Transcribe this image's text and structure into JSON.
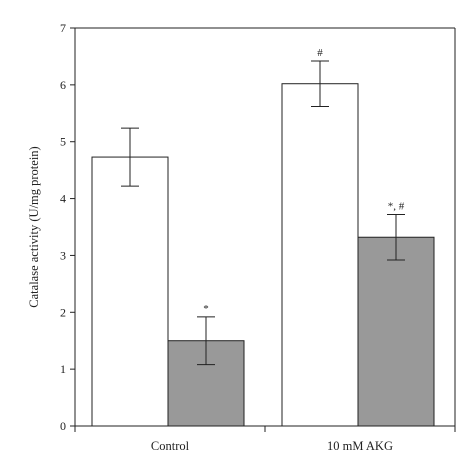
{
  "chart_data": {
    "type": "bar",
    "ylabel": "Catalase activity (U/mg protein)",
    "xlabel": "",
    "ylim": [
      0,
      7
    ],
    "yticks": [
      0,
      1,
      2,
      3,
      4,
      5,
      6,
      7
    ],
    "categories": [
      "Control",
      "10 mM AKG"
    ],
    "grid": false,
    "series": [
      {
        "color": "#ffffff",
        "values": [
          4.73,
          6.02
        ],
        "errors": [
          0.51,
          0.4
        ],
        "annotations": [
          "",
          "#"
        ]
      },
      {
        "color": "#999999",
        "values": [
          1.5,
          3.32
        ],
        "errors": [
          0.42,
          0.4
        ],
        "annotations": [
          "*",
          "*, #"
        ]
      }
    ]
  }
}
